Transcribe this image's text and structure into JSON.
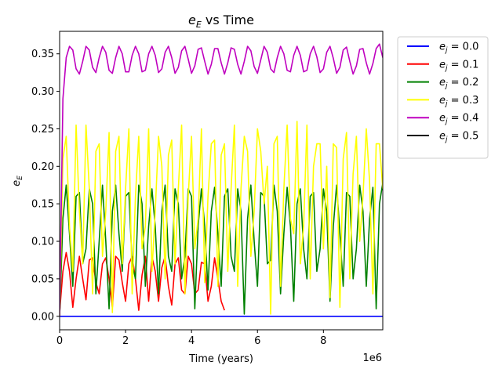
{
  "chart_data": {
    "type": "line",
    "title_base": "e",
    "title_sub": "E",
    "title_rest": " vs Time",
    "xlabel": "Time (years)",
    "ylabel_base": "e",
    "ylabel_sub": "E",
    "x_offset_text": "1e6",
    "xlim": [
      0,
      9800000
    ],
    "ylim": [
      -0.018,
      0.38
    ],
    "x_ticks": [
      0,
      2000000,
      4000000,
      6000000,
      8000000
    ],
    "x_tick_labels": [
      "0",
      "2",
      "4",
      "6",
      "8"
    ],
    "y_ticks": [
      0.0,
      0.05,
      0.1,
      0.15,
      0.2,
      0.25,
      0.3,
      0.35
    ],
    "y_tick_labels": [
      "0.00",
      "0.05",
      "0.10",
      "0.15",
      "0.20",
      "0.25",
      "0.30",
      "0.35"
    ],
    "grid": false,
    "legend_position": "outside-top-right",
    "series": [
      {
        "name": "e_j = 0.0",
        "legend_base": "e",
        "legend_sub": "j",
        "legend_rest": " = 0.0",
        "color": "#0000ff",
        "x": [
          0,
          9800000
        ],
        "y": [
          0.0,
          0.0
        ]
      },
      {
        "name": "e_j = 0.1",
        "legend_base": "e",
        "legend_sub": "j",
        "legend_rest": " = 0.1",
        "color": "#ff0000",
        "x": [
          0,
          100000,
          200000,
          300000,
          400000,
          500000,
          600000,
          700000,
          800000,
          900000,
          1000000,
          1100000,
          1200000,
          1300000,
          1400000,
          1500000,
          1600000,
          1700000,
          1800000,
          1900000,
          2000000,
          2100000,
          2200000,
          2300000,
          2400000,
          2500000,
          2600000,
          2700000,
          2800000,
          2900000,
          3000000,
          3100000,
          3200000,
          3300000,
          3400000,
          3500000,
          3600000,
          3700000,
          3800000,
          3900000,
          4000000,
          4100000,
          4200000,
          4300000,
          4400000,
          4500000,
          4600000,
          4700000,
          4800000,
          4900000,
          5000000
        ],
        "y": [
          0.005,
          0.06,
          0.085,
          0.06,
          0.012,
          0.05,
          0.08,
          0.05,
          0.022,
          0.075,
          0.078,
          0.045,
          0.03,
          0.07,
          0.078,
          0.05,
          0.012,
          0.08,
          0.075,
          0.045,
          0.02,
          0.07,
          0.08,
          0.05,
          0.008,
          0.055,
          0.08,
          0.02,
          0.08,
          0.06,
          0.02,
          0.065,
          0.08,
          0.04,
          0.015,
          0.07,
          0.078,
          0.035,
          0.03,
          0.08,
          0.07,
          0.03,
          0.035,
          0.072,
          0.07,
          0.02,
          0.04,
          0.078,
          0.05,
          0.02,
          0.008
        ]
      },
      {
        "name": "e_j = 0.2",
        "legend_base": "e",
        "legend_sub": "j",
        "legend_rest": " = 0.2",
        "color": "#008000",
        "x": [
          0,
          100000,
          200000,
          300000,
          400000,
          500000,
          600000,
          700000,
          800000,
          900000,
          1000000,
          1100000,
          1200000,
          1300000,
          1400000,
          1500000,
          1600000,
          1700000,
          1800000,
          1900000,
          2000000,
          2100000,
          2200000,
          2300000,
          2400000,
          2500000,
          2600000,
          2700000,
          2800000,
          2900000,
          3000000,
          3100000,
          3200000,
          3300000,
          3400000,
          3500000,
          3600000,
          3700000,
          3800000,
          3900000,
          4000000,
          4100000,
          4200000,
          4300000,
          4400000,
          4500000,
          4600000,
          4700000,
          4800000,
          4900000,
          5000000,
          5100000,
          5200000,
          5300000,
          5400000,
          5500000,
          5600000,
          5700000,
          5800000,
          5900000,
          6000000,
          6100000,
          6200000,
          6300000,
          6400000,
          6500000,
          6600000,
          6700000,
          6800000,
          6900000,
          7000000,
          7100000,
          7200000,
          7300000,
          7400000,
          7500000,
          7600000,
          7700000,
          7800000,
          7900000,
          8000000,
          8100000,
          8200000,
          8300000,
          8400000,
          8500000,
          8600000,
          8700000,
          8800000,
          8900000,
          9000000,
          9100000,
          9200000,
          9300000,
          9400000,
          9500000,
          9600000,
          9700000,
          9800000
        ],
        "y": [
          0.0,
          0.13,
          0.175,
          0.11,
          0.04,
          0.16,
          0.165,
          0.07,
          0.09,
          0.17,
          0.15,
          0.03,
          0.1,
          0.175,
          0.1,
          0.01,
          0.14,
          0.175,
          0.11,
          0.06,
          0.16,
          0.165,
          0.07,
          0.05,
          0.175,
          0.15,
          0.04,
          0.12,
          0.17,
          0.12,
          0.03,
          0.14,
          0.175,
          0.08,
          0.06,
          0.17,
          0.15,
          0.05,
          0.08,
          0.17,
          0.16,
          0.01,
          0.12,
          0.17,
          0.12,
          0.035,
          0.14,
          0.172,
          0.11,
          0.04,
          0.16,
          0.17,
          0.08,
          0.06,
          0.17,
          0.14,
          0.003,
          0.13,
          0.175,
          0.1,
          0.04,
          0.165,
          0.16,
          0.07,
          0.075,
          0.175,
          0.14,
          0.03,
          0.11,
          0.172,
          0.12,
          0.02,
          0.15,
          0.17,
          0.09,
          0.05,
          0.16,
          0.165,
          0.06,
          0.09,
          0.17,
          0.14,
          0.02,
          0.12,
          0.175,
          0.11,
          0.04,
          0.165,
          0.16,
          0.05,
          0.09,
          0.175,
          0.14,
          0.04,
          0.13,
          0.172,
          0.01,
          0.15,
          0.178
        ]
      },
      {
        "name": "e_j = 0.3",
        "legend_base": "e",
        "legend_sub": "j",
        "legend_rest": " = 0.3",
        "color": "#ffff00",
        "x": [
          0,
          100000,
          200000,
          300000,
          400000,
          500000,
          600000,
          700000,
          800000,
          900000,
          1000000,
          1100000,
          1200000,
          1300000,
          1400000,
          1500000,
          1600000,
          1700000,
          1800000,
          1900000,
          2000000,
          2100000,
          2200000,
          2300000,
          2400000,
          2500000,
          2600000,
          2700000,
          2800000,
          2900000,
          3000000,
          3100000,
          3200000,
          3300000,
          3400000,
          3500000,
          3600000,
          3700000,
          3800000,
          3900000,
          4000000,
          4100000,
          4200000,
          4300000,
          4400000,
          4500000,
          4600000,
          4700000,
          4800000,
          4900000,
          5000000,
          5100000,
          5200000,
          5300000,
          5400000,
          5500000,
          5600000,
          5700000,
          5800000,
          5900000,
          6000000,
          6100000,
          6200000,
          6300000,
          6400000,
          6500000,
          6600000,
          6700000,
          6800000,
          6900000,
          7000000,
          7100000,
          7200000,
          7300000,
          7400000,
          7500000,
          7600000,
          7700000,
          7800000,
          7900000,
          8000000,
          8100000,
          8200000,
          8300000,
          8400000,
          8500000,
          8600000,
          8700000,
          8800000,
          8900000,
          9000000,
          9100000,
          9200000,
          9300000,
          9400000,
          9500000,
          9600000,
          9700000,
          9800000
        ],
        "y": [
          0.0,
          0.21,
          0.24,
          0.12,
          0.06,
          0.255,
          0.14,
          0.07,
          0.255,
          0.17,
          0.03,
          0.22,
          0.23,
          0.08,
          0.14,
          0.245,
          0.005,
          0.22,
          0.24,
          0.07,
          0.17,
          0.25,
          0.03,
          0.16,
          0.24,
          0.09,
          0.12,
          0.25,
          0.06,
          0.14,
          0.24,
          0.2,
          0.05,
          0.215,
          0.235,
          0.07,
          0.17,
          0.255,
          0.03,
          0.16,
          0.24,
          0.09,
          0.13,
          0.25,
          0.045,
          0.16,
          0.23,
          0.235,
          0.04,
          0.215,
          0.23,
          0.06,
          0.17,
          0.255,
          0.04,
          0.17,
          0.24,
          0.22,
          0.08,
          0.14,
          0.25,
          0.22,
          0.15,
          0.2,
          0.003,
          0.23,
          0.24,
          0.04,
          0.17,
          0.255,
          0.13,
          0.11,
          0.26,
          0.07,
          0.12,
          0.255,
          0.05,
          0.2,
          0.23,
          0.23,
          0.09,
          0.2,
          0.025,
          0.23,
          0.225,
          0.012,
          0.21,
          0.245,
          0.05,
          0.19,
          0.24,
          0.1,
          0.16,
          0.25,
          0.18,
          0.03,
          0.23,
          0.23,
          0.17
        ]
      },
      {
        "name": "e_j = 0.4",
        "legend_base": "e",
        "legend_sub": "j",
        "legend_rest": " = 0.4",
        "color": "#bf00bf",
        "x": [
          0,
          100000,
          200000,
          300000,
          400000,
          500000,
          600000,
          700000,
          800000,
          900000,
          1000000,
          1100000,
          1200000,
          1300000,
          1400000,
          1500000,
          1600000,
          1700000,
          1800000,
          1900000,
          2000000,
          2100000,
          2200000,
          2300000,
          2400000,
          2500000,
          2600000,
          2700000,
          2800000,
          2900000,
          3000000,
          3100000,
          3200000,
          3300000,
          3400000,
          3500000,
          3600000,
          3700000,
          3800000,
          3900000,
          4000000,
          4100000,
          4200000,
          4300000,
          4400000,
          4500000,
          4600000,
          4700000,
          4800000,
          4900000,
          5000000,
          5100000,
          5200000,
          5300000,
          5400000,
          5500000,
          5600000,
          5700000,
          5800000,
          5900000,
          6000000,
          6100000,
          6200000,
          6300000,
          6400000,
          6500000,
          6600000,
          6700000,
          6800000,
          6900000,
          7000000,
          7100000,
          7200000,
          7300000,
          7400000,
          7500000,
          7600000,
          7700000,
          7800000,
          7900000,
          8000000,
          8100000,
          8200000,
          8300000,
          8400000,
          8500000,
          8600000,
          8700000,
          8800000,
          8900000,
          9000000,
          9100000,
          9200000,
          9300000,
          9400000,
          9500000,
          9600000,
          9700000,
          9800000
        ],
        "y": [
          0.0,
          0.29,
          0.345,
          0.36,
          0.355,
          0.33,
          0.323,
          0.34,
          0.36,
          0.355,
          0.332,
          0.325,
          0.345,
          0.36,
          0.352,
          0.328,
          0.324,
          0.345,
          0.36,
          0.35,
          0.326,
          0.326,
          0.348,
          0.36,
          0.35,
          0.326,
          0.328,
          0.35,
          0.36,
          0.348,
          0.325,
          0.33,
          0.352,
          0.36,
          0.345,
          0.324,
          0.332,
          0.354,
          0.36,
          0.343,
          0.324,
          0.334,
          0.356,
          0.358,
          0.34,
          0.323,
          0.336,
          0.357,
          0.357,
          0.338,
          0.323,
          0.338,
          0.358,
          0.356,
          0.336,
          0.323,
          0.34,
          0.36,
          0.354,
          0.333,
          0.324,
          0.342,
          0.36,
          0.352,
          0.33,
          0.325,
          0.345,
          0.36,
          0.35,
          0.328,
          0.326,
          0.348,
          0.36,
          0.348,
          0.326,
          0.328,
          0.35,
          0.36,
          0.346,
          0.325,
          0.33,
          0.352,
          0.36,
          0.344,
          0.324,
          0.332,
          0.355,
          0.359,
          0.34,
          0.323,
          0.334,
          0.356,
          0.357,
          0.338,
          0.323,
          0.337,
          0.357,
          0.363,
          0.345
        ]
      },
      {
        "name": "e_j = 0.5",
        "legend_base": "e",
        "legend_sub": "j",
        "legend_rest": " = 0.5",
        "color": "#000000",
        "x": [],
        "y": []
      }
    ]
  }
}
